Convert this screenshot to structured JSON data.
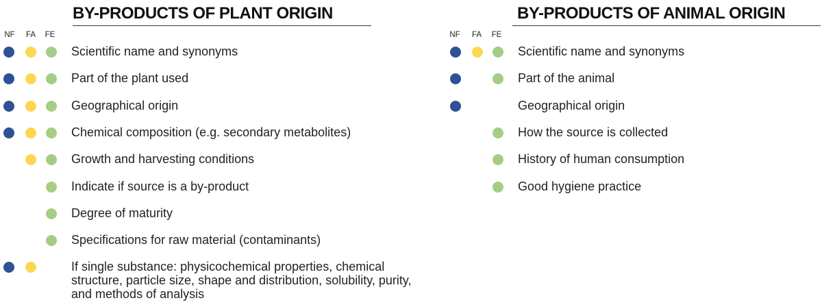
{
  "colors": {
    "nf": "#2d5295",
    "fa": "#fdd654",
    "fe": "#a4ce86"
  },
  "plant": {
    "title": "BY-PRODUCTS OF PLANT ORIGIN",
    "columns": {
      "nf": "NF",
      "fa": "FA",
      "fe": "FE"
    },
    "items": [
      {
        "label": "Scientific name and synonyms",
        "nf": true,
        "fa": true,
        "fe": true
      },
      {
        "label": "Part of the plant used",
        "nf": true,
        "fa": true,
        "fe": true
      },
      {
        "label": "Geographical origin",
        "nf": true,
        "fa": true,
        "fe": true
      },
      {
        "label": "Chemical composition (e.g. secondary metabolites)",
        "nf": true,
        "fa": true,
        "fe": true
      },
      {
        "label": "Growth and harvesting conditions",
        "nf": false,
        "fa": true,
        "fe": true
      },
      {
        "label": "Indicate if source is a by-product",
        "nf": false,
        "fa": false,
        "fe": true
      },
      {
        "label": "Degree of maturity",
        "nf": false,
        "fa": false,
        "fe": true
      },
      {
        "label": "Specifications for raw material (contaminants)",
        "nf": false,
        "fa": false,
        "fe": true
      },
      {
        "label": "If single substance: physicochemical properties, chemical structure, particle size, shape and distribution, solubility, purity, and methods of analysis",
        "nf": true,
        "fa": true,
        "fe": false
      }
    ]
  },
  "animal": {
    "title": "BY-PRODUCTS OF ANIMAL ORIGIN",
    "columns": {
      "nf": "NF",
      "fa": "FA",
      "fe": "FE"
    },
    "items": [
      {
        "label": "Scientific name and synonyms",
        "nf": true,
        "fa": true,
        "fe": true
      },
      {
        "label": "Part of the animal",
        "nf": true,
        "fa": false,
        "fe": true
      },
      {
        "label": "Geographical origin",
        "nf": true,
        "fa": false,
        "fe": false
      },
      {
        "label": "How the source is collected",
        "nf": false,
        "fa": false,
        "fe": true
      },
      {
        "label": "History of human consumption",
        "nf": false,
        "fa": false,
        "fe": true
      },
      {
        "label": "Good hygiene practice",
        "nf": false,
        "fa": false,
        "fe": true
      }
    ]
  }
}
